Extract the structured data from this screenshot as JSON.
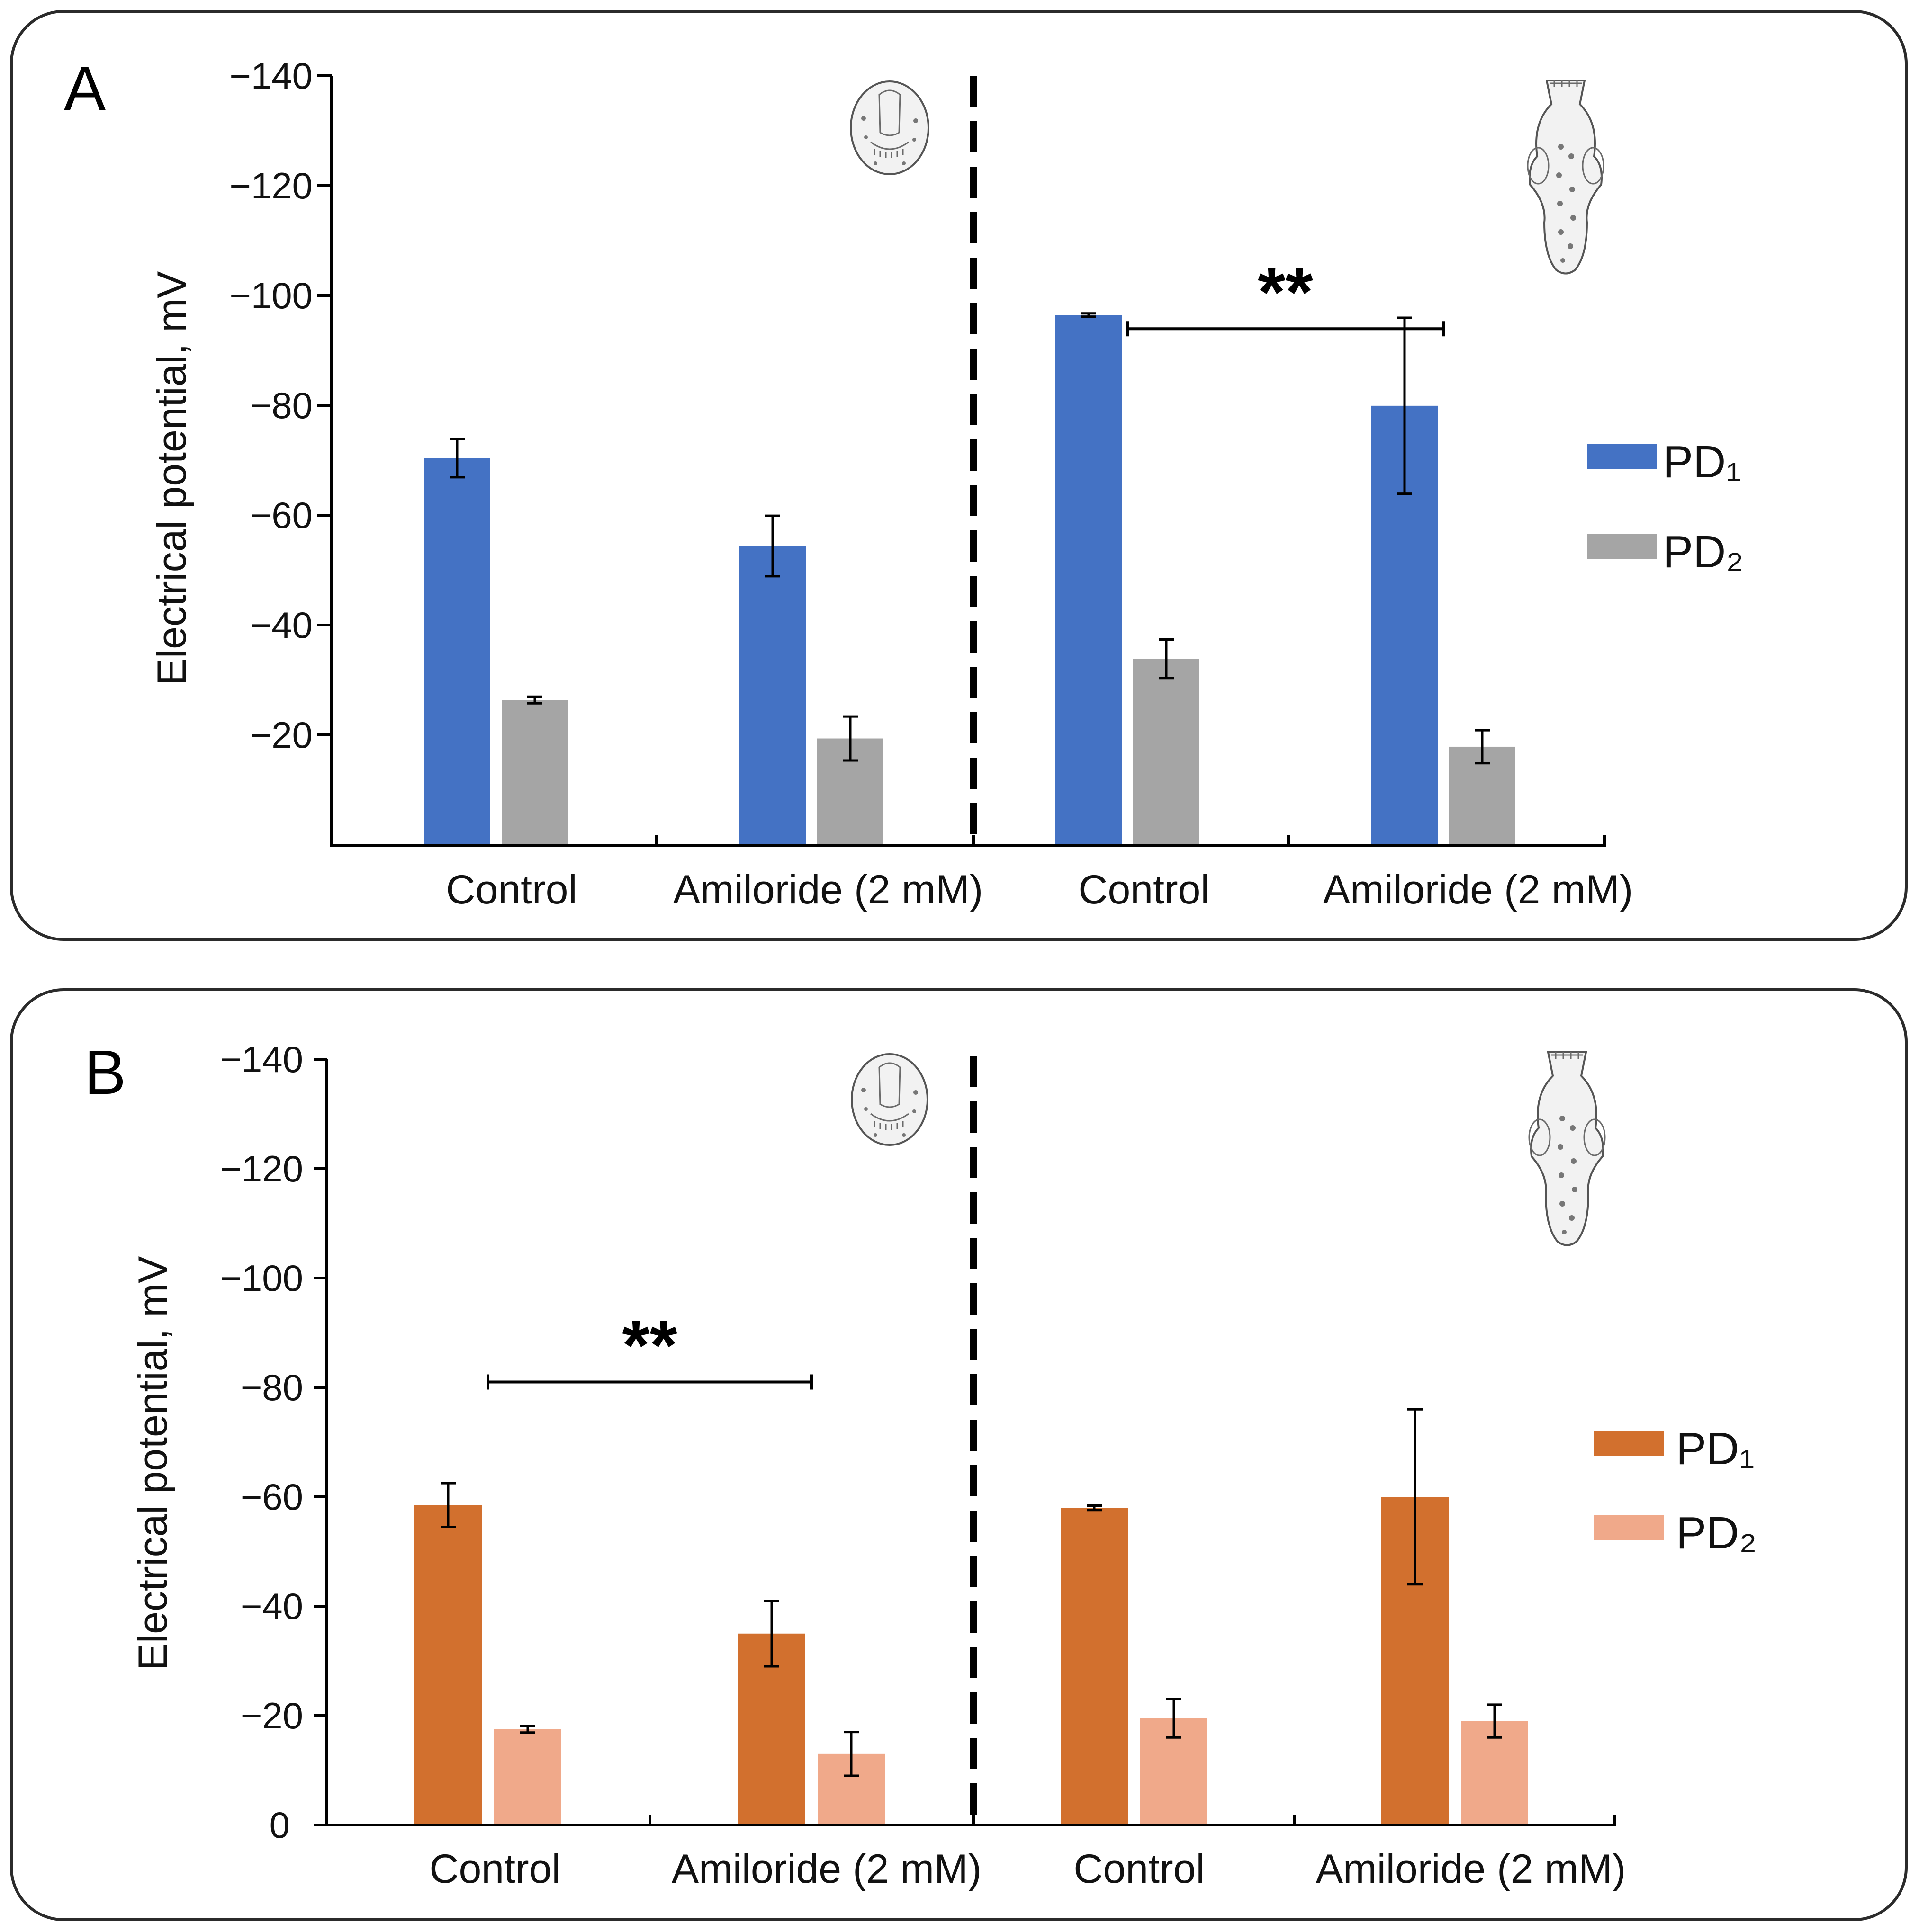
{
  "chart_data": [
    {
      "panel": "A",
      "type": "bar",
      "ylabel": "Electrical potential, mV",
      "yticks": [
        "−140",
        "−120",
        "−100",
        "−80",
        "−60",
        "−40",
        "−20",
        ""
      ],
      "ylim": [
        0,
        -140
      ],
      "categories": [
        "Control",
        "Amiloride (2 mM)",
        "Control",
        "Amiloride (2 mM)"
      ],
      "series": [
        {
          "name": "PD₁",
          "color": "#4472c4",
          "values": [
            -70.5,
            -54.5,
            -96.5,
            -80
          ],
          "errors": [
            3.5,
            5.5,
            0.3,
            16
          ]
        },
        {
          "name": "PD₂",
          "color": "#a5a5a5",
          "values": [
            -26.5,
            -19.5,
            -34,
            -18
          ],
          "errors": [
            0.6,
            4,
            3.5,
            3
          ]
        }
      ],
      "significance": {
        "label": "**",
        "from_category": 2,
        "to_category": 3,
        "level": -94
      }
    },
    {
      "panel": "B",
      "type": "bar",
      "ylabel": "Electrical potential, mV",
      "yticks": [
        "−140",
        "−120",
        "−100",
        "−80",
        "−60",
        "−40",
        "−20",
        "0"
      ],
      "ylim": [
        0,
        -140
      ],
      "categories": [
        "Control",
        "Amiloride (2 mM)",
        "Control",
        "Amiloride (2 mM)"
      ],
      "series": [
        {
          "name": "PD₁",
          "color": "#d2702e",
          "values": [
            -58.5,
            -35,
            -58,
            -60
          ],
          "errors": [
            4,
            6,
            0.4,
            16
          ]
        },
        {
          "name": "PD₂",
          "color": "#f0a98a",
          "values": [
            -17.5,
            -13,
            -19.5,
            -19
          ],
          "errors": [
            0.6,
            4,
            3.5,
            3
          ]
        }
      ],
      "significance": {
        "label": "**",
        "from_category": 0,
        "to_category": 1,
        "level": -81
      }
    }
  ]
}
